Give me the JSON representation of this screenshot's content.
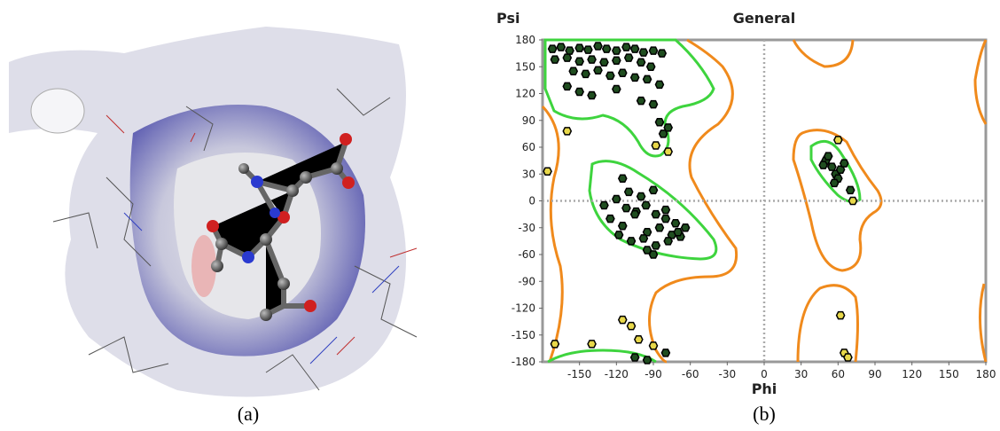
{
  "captions": [
    "(a)",
    "(b)"
  ],
  "chart_data": {
    "type": "scatter",
    "title": "General",
    "x_label": "Phi",
    "y_label": "Psi",
    "xlim": [
      -180,
      180
    ],
    "ylim": [
      -180,
      180
    ],
    "xticks": [
      -150,
      -120,
      -90,
      -60,
      -30,
      0,
      30,
      60,
      90,
      120,
      150,
      180
    ],
    "yticks": [
      -180,
      -150,
      -120,
      -90,
      -60,
      -30,
      0,
      30,
      60,
      90,
      120,
      150,
      180
    ],
    "series": [
      {
        "color": "#1f4d1f",
        "x": [
          -172,
          -165,
          -158,
          -150,
          -143,
          -135,
          -128,
          -120,
          -112,
          -105,
          -98,
          -90,
          -83,
          -170,
          -160,
          -150,
          -140,
          -130,
          -120,
          -110,
          -100,
          -92,
          -155,
          -145,
          -135,
          -125,
          -115,
          -105,
          -95,
          -85,
          -160,
          -150,
          -140,
          -120,
          -100,
          -90,
          -85,
          -78,
          -82,
          -130,
          -120,
          -112,
          -104,
          -96,
          -88,
          -80,
          -72,
          -64,
          -125,
          -115,
          -105,
          -95,
          -85,
          -75,
          -68,
          -118,
          -108,
          -98,
          -88,
          -78,
          -70,
          -110,
          -100,
          -90,
          -80,
          -115,
          -95,
          -90,
          50,
          55,
          58,
          62,
          52,
          60,
          65,
          57,
          70,
          48,
          -105,
          -80,
          -95
        ],
        "values": [
          170,
          172,
          168,
          171,
          169,
          173,
          170,
          168,
          172,
          170,
          166,
          168,
          165,
          158,
          160,
          156,
          158,
          155,
          157,
          160,
          155,
          150,
          145,
          142,
          146,
          140,
          143,
          138,
          136,
          130,
          128,
          122,
          118,
          125,
          112,
          108,
          88,
          82,
          75,
          -5,
          2,
          -8,
          -12,
          -5,
          -15,
          -20,
          -25,
          -30,
          -20,
          -28,
          -15,
          -35,
          -30,
          -38,
          -40,
          -38,
          -45,
          -42,
          -50,
          -45,
          -35,
          10,
          5,
          12,
          -10,
          25,
          -55,
          -60,
          45,
          38,
          30,
          35,
          50,
          25,
          42,
          20,
          12,
          40,
          -175,
          -170,
          -178
        ]
      },
      {
        "color": "#e8d84a",
        "x": [
          -160,
          -176,
          -88,
          -78,
          72,
          60,
          62,
          -115,
          -108,
          -170,
          -140,
          -90,
          -102,
          65,
          68
        ],
        "values": [
          78,
          33,
          62,
          55,
          0,
          68,
          -128,
          -133,
          -140,
          -160,
          -160,
          -162,
          -155,
          -170,
          -175
        ]
      }
    ],
    "grid_zero_lines": true
  }
}
